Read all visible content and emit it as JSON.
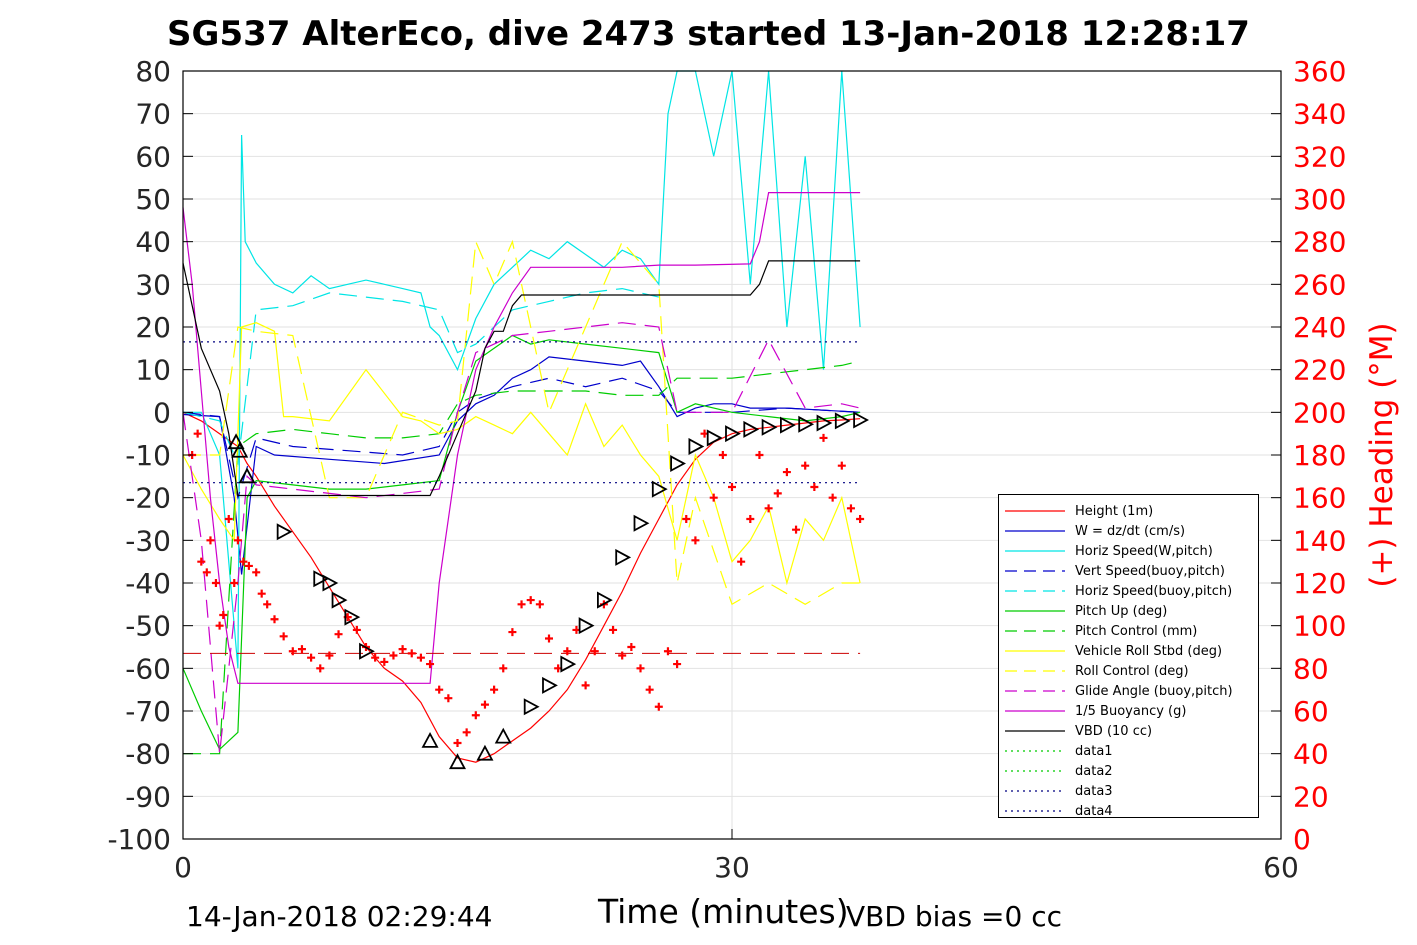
{
  "header": {
    "title": "SG537 AlterEco, dive 2473 started 13-Jan-2018 12:28:17"
  },
  "footer": {
    "timestamp": "14-Jan-2018 02:29:44",
    "vbd_bias": "VBD bias =0 cc"
  },
  "chart_data": {
    "type": "line",
    "title": "SG537 AlterEco, dive 2473 started 13-Jan-2018 12:28:17",
    "xlabel": "Time (minutes)",
    "ylabel_right": "(+) Heading (°M)",
    "xlim": [
      0,
      60
    ],
    "ylim": [
      -100,
      80
    ],
    "ylim_right": [
      0,
      360
    ],
    "x_ticks": [
      "0",
      "30",
      "60"
    ],
    "y_ticks": [
      "80",
      "70",
      "60",
      "50",
      "40",
      "30",
      "20",
      "10",
      "0",
      "-10",
      "-20",
      "-30",
      "-40",
      "-50",
      "-60",
      "-70",
      "-80",
      "-90",
      "-100"
    ],
    "y_right_ticks": [
      "360",
      "340",
      "320",
      "300",
      "280",
      "260",
      "240",
      "220",
      "200",
      "180",
      "160",
      "140",
      "120",
      "100",
      "80",
      "60",
      "40",
      "20",
      "0"
    ],
    "legend_position": "lower-right",
    "series": [
      {
        "name": "Height (1m)",
        "color": "#ff0000",
        "style": "solid",
        "x": [
          0,
          1,
          2,
          3,
          3.5,
          4,
          5,
          6,
          7,
          8,
          9,
          10,
          11,
          12,
          13,
          14,
          15,
          16,
          17,
          18,
          19,
          20,
          21,
          22,
          23,
          24,
          25,
          26,
          27,
          28,
          29,
          30,
          31,
          32,
          33,
          34,
          35,
          36,
          37
        ],
        "y": [
          0,
          -2,
          -5,
          -8,
          -12,
          -15,
          -22,
          -28,
          -34,
          -41,
          -48,
          -55,
          -60,
          -63,
          -68,
          -76,
          -81,
          -82,
          -80,
          -77,
          -74,
          -70,
          -65,
          -58,
          -50,
          -42,
          -33,
          -25,
          -17,
          -11,
          -7,
          -5,
          -4,
          -3.5,
          -3,
          -2.5,
          -2,
          -1.8,
          -1.5
        ]
      },
      {
        "name": "W = dz/dt (cm/s)",
        "color": "#0000cc",
        "style": "solid",
        "x": [
          0,
          2,
          2.8,
          3.2,
          4,
          5,
          8,
          11,
          14,
          15,
          16,
          17,
          18,
          19,
          20,
          22,
          24,
          25,
          26,
          27,
          28,
          29,
          30,
          31,
          33,
          35,
          37
        ],
        "y": [
          -0.5,
          -1,
          -20,
          -38,
          -8,
          -10,
          -11,
          -12,
          -10,
          -2,
          2,
          4,
          8,
          10,
          13,
          12,
          11,
          12,
          6,
          -1,
          1,
          2,
          2,
          1,
          1,
          0.5,
          0
        ]
      },
      {
        "name": "Horiz Speed(W,pitch)",
        "color": "#00e5e5",
        "style": "solid",
        "x": [
          0,
          1,
          2,
          3,
          3.2,
          3.4,
          4,
          5,
          6,
          7,
          8,
          9,
          10,
          11,
          12,
          13,
          13.5,
          14,
          15,
          16,
          17,
          18,
          19,
          20,
          21,
          22,
          23,
          24,
          25,
          26,
          26.5,
          27,
          28,
          29,
          30,
          31,
          32,
          33,
          34,
          35,
          36,
          37
        ],
        "y": [
          0,
          0,
          -10,
          -60,
          65,
          40,
          35,
          30,
          28,
          32,
          29,
          30,
          31,
          30,
          29,
          28,
          20,
          18,
          10,
          22,
          30,
          34,
          38,
          36,
          40,
          37,
          34,
          38,
          36,
          30,
          70,
          80,
          80,
          60,
          80,
          30,
          80,
          20,
          60,
          10,
          80,
          20
        ]
      },
      {
        "name": "Vert Speed(buoy,pitch)",
        "color": "#0000cc",
        "style": "dashed",
        "x": [
          0,
          2,
          3,
          4,
          6,
          9,
          12,
          14,
          15,
          16,
          18,
          20,
          22,
          24,
          26,
          27,
          30,
          33,
          37
        ],
        "y": [
          0,
          -1,
          -20,
          -6,
          -8,
          -9,
          -10,
          -8,
          0,
          3,
          6,
          8,
          6,
          8,
          5,
          0,
          0,
          1,
          0
        ]
      },
      {
        "name": "Horiz Speed(buoy,pitch)",
        "color": "#00e5e5",
        "style": "dashed",
        "x": [
          0,
          2,
          3,
          4,
          6,
          8,
          10,
          12,
          14,
          15,
          16,
          18,
          20,
          22,
          24,
          26
        ],
        "y": [
          0,
          -2,
          -12,
          24,
          25,
          28,
          27,
          26,
          24,
          14,
          16,
          24,
          26,
          28,
          29,
          27
        ]
      },
      {
        "name": "Pitch Up (deg)",
        "color": "#00cc00",
        "style": "solid",
        "x": [
          0,
          1,
          2,
          3,
          3.5,
          4,
          6,
          8,
          10,
          12,
          14,
          15,
          16,
          17,
          18,
          19,
          20,
          22,
          24,
          26,
          27,
          28,
          30,
          32,
          34,
          36,
          37
        ],
        "y": [
          -60,
          -70,
          -79,
          -75,
          -20,
          -16,
          -17,
          -18,
          -18,
          -17,
          -16,
          0,
          12,
          15,
          18,
          16,
          17,
          16,
          15,
          14,
          0,
          2,
          0,
          -1,
          -2,
          -1,
          0
        ]
      },
      {
        "name": "Pitch Control (mm)",
        "color": "#00cc00",
        "style": "dashed",
        "x": [
          0,
          1,
          2,
          3,
          4,
          6,
          8,
          10,
          12,
          14,
          15,
          16,
          18,
          20,
          22,
          24,
          26,
          27,
          30,
          32,
          34,
          36,
          37
        ],
        "y": [
          -80,
          -80,
          -80,
          -8,
          -5,
          -4,
          -5,
          -6,
          -6,
          -5,
          2,
          4,
          5,
          5,
          5,
          4,
          4,
          8,
          8,
          9,
          10,
          11,
          12
        ]
      },
      {
        "name": "Vehicle Roll Stbd (deg)",
        "color": "#ffff00",
        "style": "solid",
        "x": [
          0,
          1,
          2,
          2.8,
          3.2,
          4,
          5,
          5.5,
          6,
          8,
          10,
          12,
          13,
          14,
          15,
          16,
          17,
          18,
          19,
          20,
          21,
          22,
          23,
          24,
          25,
          26,
          27,
          28,
          29,
          30,
          31,
          32,
          33,
          34,
          35,
          36,
          37
        ],
        "y": [
          -10,
          -18,
          -25,
          -30,
          20,
          21,
          19,
          -1,
          -1,
          -2,
          10,
          -1,
          -2,
          -5,
          -4,
          -1,
          -3,
          -5,
          0,
          -5,
          -10,
          2,
          -8,
          -3,
          -10,
          -15,
          -30,
          -10,
          -20,
          -35,
          -30,
          -22,
          -40,
          -25,
          -30,
          -20,
          -40
        ]
      },
      {
        "name": "Roll Control (deg)",
        "color": "#ffff00",
        "style": "dashed",
        "x": [
          0,
          2,
          3,
          4,
          6,
          8,
          10,
          12,
          14,
          15,
          16,
          17,
          18,
          19,
          20,
          22,
          24,
          26,
          27,
          28,
          30,
          32,
          34,
          36,
          37
        ],
        "y": [
          -10,
          -10,
          20,
          19,
          18,
          -20,
          -20,
          0,
          -3,
          -2,
          40,
          30,
          40,
          20,
          0,
          20,
          40,
          30,
          -40,
          -20,
          -45,
          -40,
          -45,
          -40,
          -40
        ]
      },
      {
        "name": "Glide Angle (buoy,pitch)",
        "color": "#cc00cc",
        "style": "dashed",
        "x": [
          0,
          1,
          2,
          3,
          3.5,
          4,
          6,
          8,
          10,
          12,
          14,
          15,
          16,
          17,
          18,
          20,
          22,
          24,
          26,
          27,
          30,
          32,
          34,
          36,
          37
        ],
        "y": [
          0,
          -30,
          -80,
          -40,
          -15,
          -17,
          -18,
          -19,
          -20,
          -19,
          -18,
          0,
          14,
          16,
          18,
          19,
          20,
          21,
          20,
          0,
          0,
          17,
          1,
          2,
          1
        ]
      },
      {
        "name": "1/5 Buoyancy (g)",
        "color": "#cc00cc",
        "style": "solid",
        "x": [
          0,
          0.5,
          1,
          1.5,
          2,
          2.5,
          3,
          13.5,
          14,
          15,
          16,
          17,
          18,
          19,
          20,
          24,
          26,
          27,
          28,
          31,
          31.5,
          32,
          37
        ],
        "y": [
          48,
          30,
          5,
          -20,
          -40,
          -55,
          -63.5,
          -63.5,
          -40,
          -10,
          10,
          20,
          28,
          34,
          34,
          34,
          34.5,
          34.5,
          34.5,
          34.8,
          40,
          51.5,
          51.5
        ]
      },
      {
        "name": "VBD (10 cc)",
        "color": "#000000",
        "style": "solid",
        "x": [
          0,
          0.5,
          1,
          2,
          2.5,
          3,
          13.5,
          14,
          15,
          16,
          16.5,
          17,
          17.5,
          18,
          18.5,
          19,
          31,
          31.5,
          32,
          37
        ],
        "y": [
          35,
          25,
          15,
          5,
          -5,
          -19.5,
          -19.5,
          -15,
          -5,
          5,
          15,
          19,
          19,
          25,
          27.5,
          27.5,
          27.5,
          30,
          35.5,
          35.5
        ]
      },
      {
        "name": "data1",
        "color": "#00cc00",
        "style": "dotted",
        "x": [],
        "y": []
      },
      {
        "name": "data2",
        "color": "#00cc00",
        "style": "dotted",
        "x": [],
        "y": []
      },
      {
        "name": "data3",
        "color": "#000080",
        "style": "dotted",
        "x": [
          0,
          37
        ],
        "y": [
          16.5,
          16.5
        ]
      },
      {
        "name": "data4",
        "color": "#000080",
        "style": "dotted",
        "x": [
          0,
          37
        ],
        "y": [
          -16.5,
          -16.5
        ]
      }
    ],
    "reference_lines": [
      {
        "color": "#cc0000",
        "style": "dashed",
        "y": -56.5,
        "x": [
          0,
          37
        ]
      }
    ],
    "heading_points": {
      "color": "#ff0000",
      "x": [
        0.5,
        0.8,
        1,
        1.3,
        1.5,
        1.8,
        2,
        2.2,
        2.5,
        2.8,
        3,
        3.3,
        3.6,
        4,
        4.3,
        4.6,
        5,
        5.5,
        6,
        6.5,
        7,
        7.5,
        8,
        8.5,
        9,
        9.5,
        10,
        10.5,
        11,
        11.5,
        12,
        12.5,
        13,
        13.5,
        14,
        14.5,
        15,
        15.5,
        16,
        16.5,
        17,
        17.5,
        18,
        18.5,
        19,
        19.5,
        20,
        20.5,
        21,
        21.5,
        22,
        22.5,
        23,
        23.5,
        24,
        24.5,
        25,
        25.5,
        26,
        26.5,
        27,
        27.5,
        28,
        28.5,
        29,
        29.5,
        30,
        30.5,
        31,
        31.5,
        32,
        32.5,
        33,
        33.5,
        34,
        34.5,
        35,
        35.5,
        36,
        36.5,
        37
      ],
      "y": [
        180,
        190,
        130,
        125,
        140,
        120,
        100,
        105,
        150,
        120,
        140,
        130,
        128,
        125,
        115,
        110,
        103,
        95,
        88,
        89,
        85,
        80,
        86,
        96,
        104,
        98,
        90,
        85,
        83,
        86,
        89,
        87,
        85,
        82,
        70,
        66,
        45,
        50,
        58,
        63,
        70,
        80,
        97,
        110,
        112,
        110,
        94,
        80,
        88,
        98,
        72,
        88,
        110,
        98,
        86,
        90,
        80,
        70,
        62,
        88,
        82,
        150,
        140,
        190,
        160,
        180,
        165,
        130,
        150,
        180,
        155,
        162,
        172,
        145,
        175,
        165,
        188,
        160,
        175,
        155,
        150
      ]
    },
    "depth_markers": {
      "color": "#000000",
      "note": "triangle markers along Height trace",
      "x": [
        2.9,
        3.1,
        3.5,
        5.5,
        7.5,
        8.0,
        8.5,
        9.2,
        10.0,
        13.5,
        15.0,
        16.5,
        17.5,
        19.0,
        20.0,
        21.0,
        22.0,
        23.0,
        24.0,
        25.0,
        26.0,
        27.0,
        28.0,
        29.0,
        30.0,
        31.0,
        32.0,
        33.0,
        34.0,
        35.0,
        36.0,
        37.0
      ],
      "y": [
        -7,
        -9,
        -15,
        -28,
        -39,
        -40,
        -44,
        -48,
        -56,
        -77,
        -82,
        -80,
        -76,
        -69,
        -64,
        -59,
        -50,
        -44,
        -34,
        -26,
        -18,
        -12,
        -8,
        -6,
        -5,
        -4,
        -3.5,
        -3,
        -2.8,
        -2.5,
        -2,
        -1.8
      ]
    }
  }
}
